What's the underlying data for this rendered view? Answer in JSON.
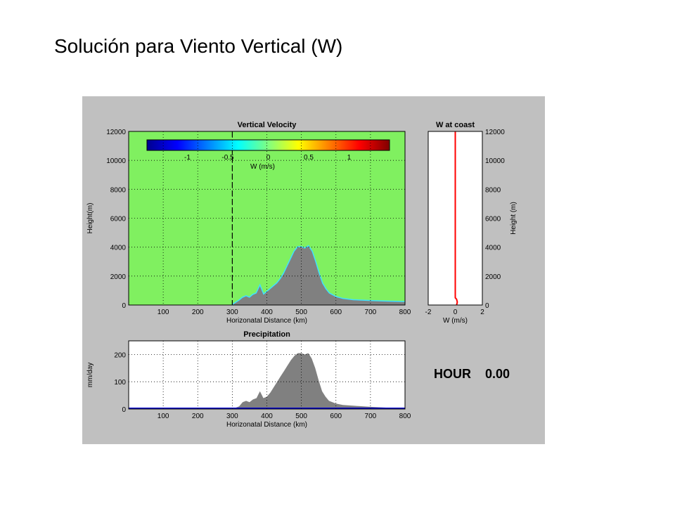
{
  "slide_title": "Solución para Viento Vertical (W)",
  "hour": {
    "label": "HOUR",
    "value": "0.00"
  },
  "chart_data": [
    {
      "type": "area",
      "title": "Vertical Velocity",
      "xlabel": "Horizonatal Distance (km)",
      "ylabel": "Height(m)",
      "xlim": [
        0,
        800
      ],
      "ylim": [
        0,
        12000
      ],
      "xticks": [
        100,
        200,
        300,
        400,
        500,
        600,
        700,
        800
      ],
      "yticks": [
        0,
        2000,
        4000,
        6000,
        8000,
        10000,
        12000
      ],
      "grid": true,
      "background_color": "#80f060",
      "terrain_color": "#808080",
      "coast_line_x": 300,
      "colorbar": {
        "label": "W (m/s)",
        "ticks": [
          "-1",
          "-0.5",
          "0",
          "0.5",
          "1"
        ],
        "range": [
          -1.5,
          1.5
        ]
      },
      "terrain": {
        "x": [
          300,
          310,
          320,
          330,
          340,
          350,
          360,
          370,
          380,
          390,
          400,
          410,
          420,
          430,
          440,
          450,
          460,
          470,
          480,
          490,
          500,
          510,
          520,
          530,
          540,
          550,
          560,
          570,
          580,
          600,
          620,
          650,
          700,
          750,
          800
        ],
        "y": [
          0,
          150,
          300,
          500,
          600,
          500,
          700,
          800,
          1300,
          700,
          900,
          1100,
          1300,
          1500,
          1800,
          2200,
          2700,
          3200,
          3700,
          4000,
          4000,
          3900,
          4050,
          3700,
          3000,
          2200,
          1500,
          1100,
          800,
          550,
          420,
          330,
          270,
          230,
          200
        ]
      }
    },
    {
      "type": "line",
      "title": "W at coast",
      "xlabel": "W (m/s)",
      "ylabel": "Height (m)",
      "xlim": [
        -2,
        2
      ],
      "ylim": [
        0,
        12000
      ],
      "xticks": [
        -2,
        0,
        2
      ],
      "yticks": [
        0,
        2000,
        4000,
        6000,
        8000,
        10000,
        12000
      ],
      "series": [
        {
          "x": [
            0,
            0,
            0.1,
            0.15,
            0.1
          ],
          "y": [
            12000,
            500,
            400,
            200,
            0
          ],
          "color": "#ff0000"
        }
      ]
    },
    {
      "type": "area",
      "title": "Precipitation",
      "xlabel": "Horizonatal Distance (km)",
      "ylabel": "mm/day",
      "xlim": [
        0,
        800
      ],
      "ylim": [
        0,
        250
      ],
      "xticks": [
        100,
        200,
        300,
        400,
        500,
        600,
        700,
        800
      ],
      "yticks": [
        0,
        100,
        200
      ],
      "grid": true,
      "fill_color": "#808080",
      "baseline_color": "#0000cc",
      "series": {
        "x": [
          300,
          310,
          320,
          330,
          340,
          350,
          360,
          370,
          380,
          390,
          400,
          410,
          420,
          430,
          440,
          450,
          460,
          470,
          480,
          490,
          500,
          510,
          520,
          530,
          540,
          550,
          560,
          570,
          580,
          600,
          620,
          650,
          700,
          750,
          800
        ],
        "y": [
          0,
          5,
          10,
          25,
          30,
          25,
          35,
          40,
          65,
          40,
          45,
          60,
          80,
          100,
          120,
          140,
          160,
          180,
          195,
          205,
          205,
          200,
          205,
          185,
          150,
          105,
          65,
          45,
          30,
          20,
          15,
          12,
          8,
          5,
          3
        ]
      }
    }
  ]
}
